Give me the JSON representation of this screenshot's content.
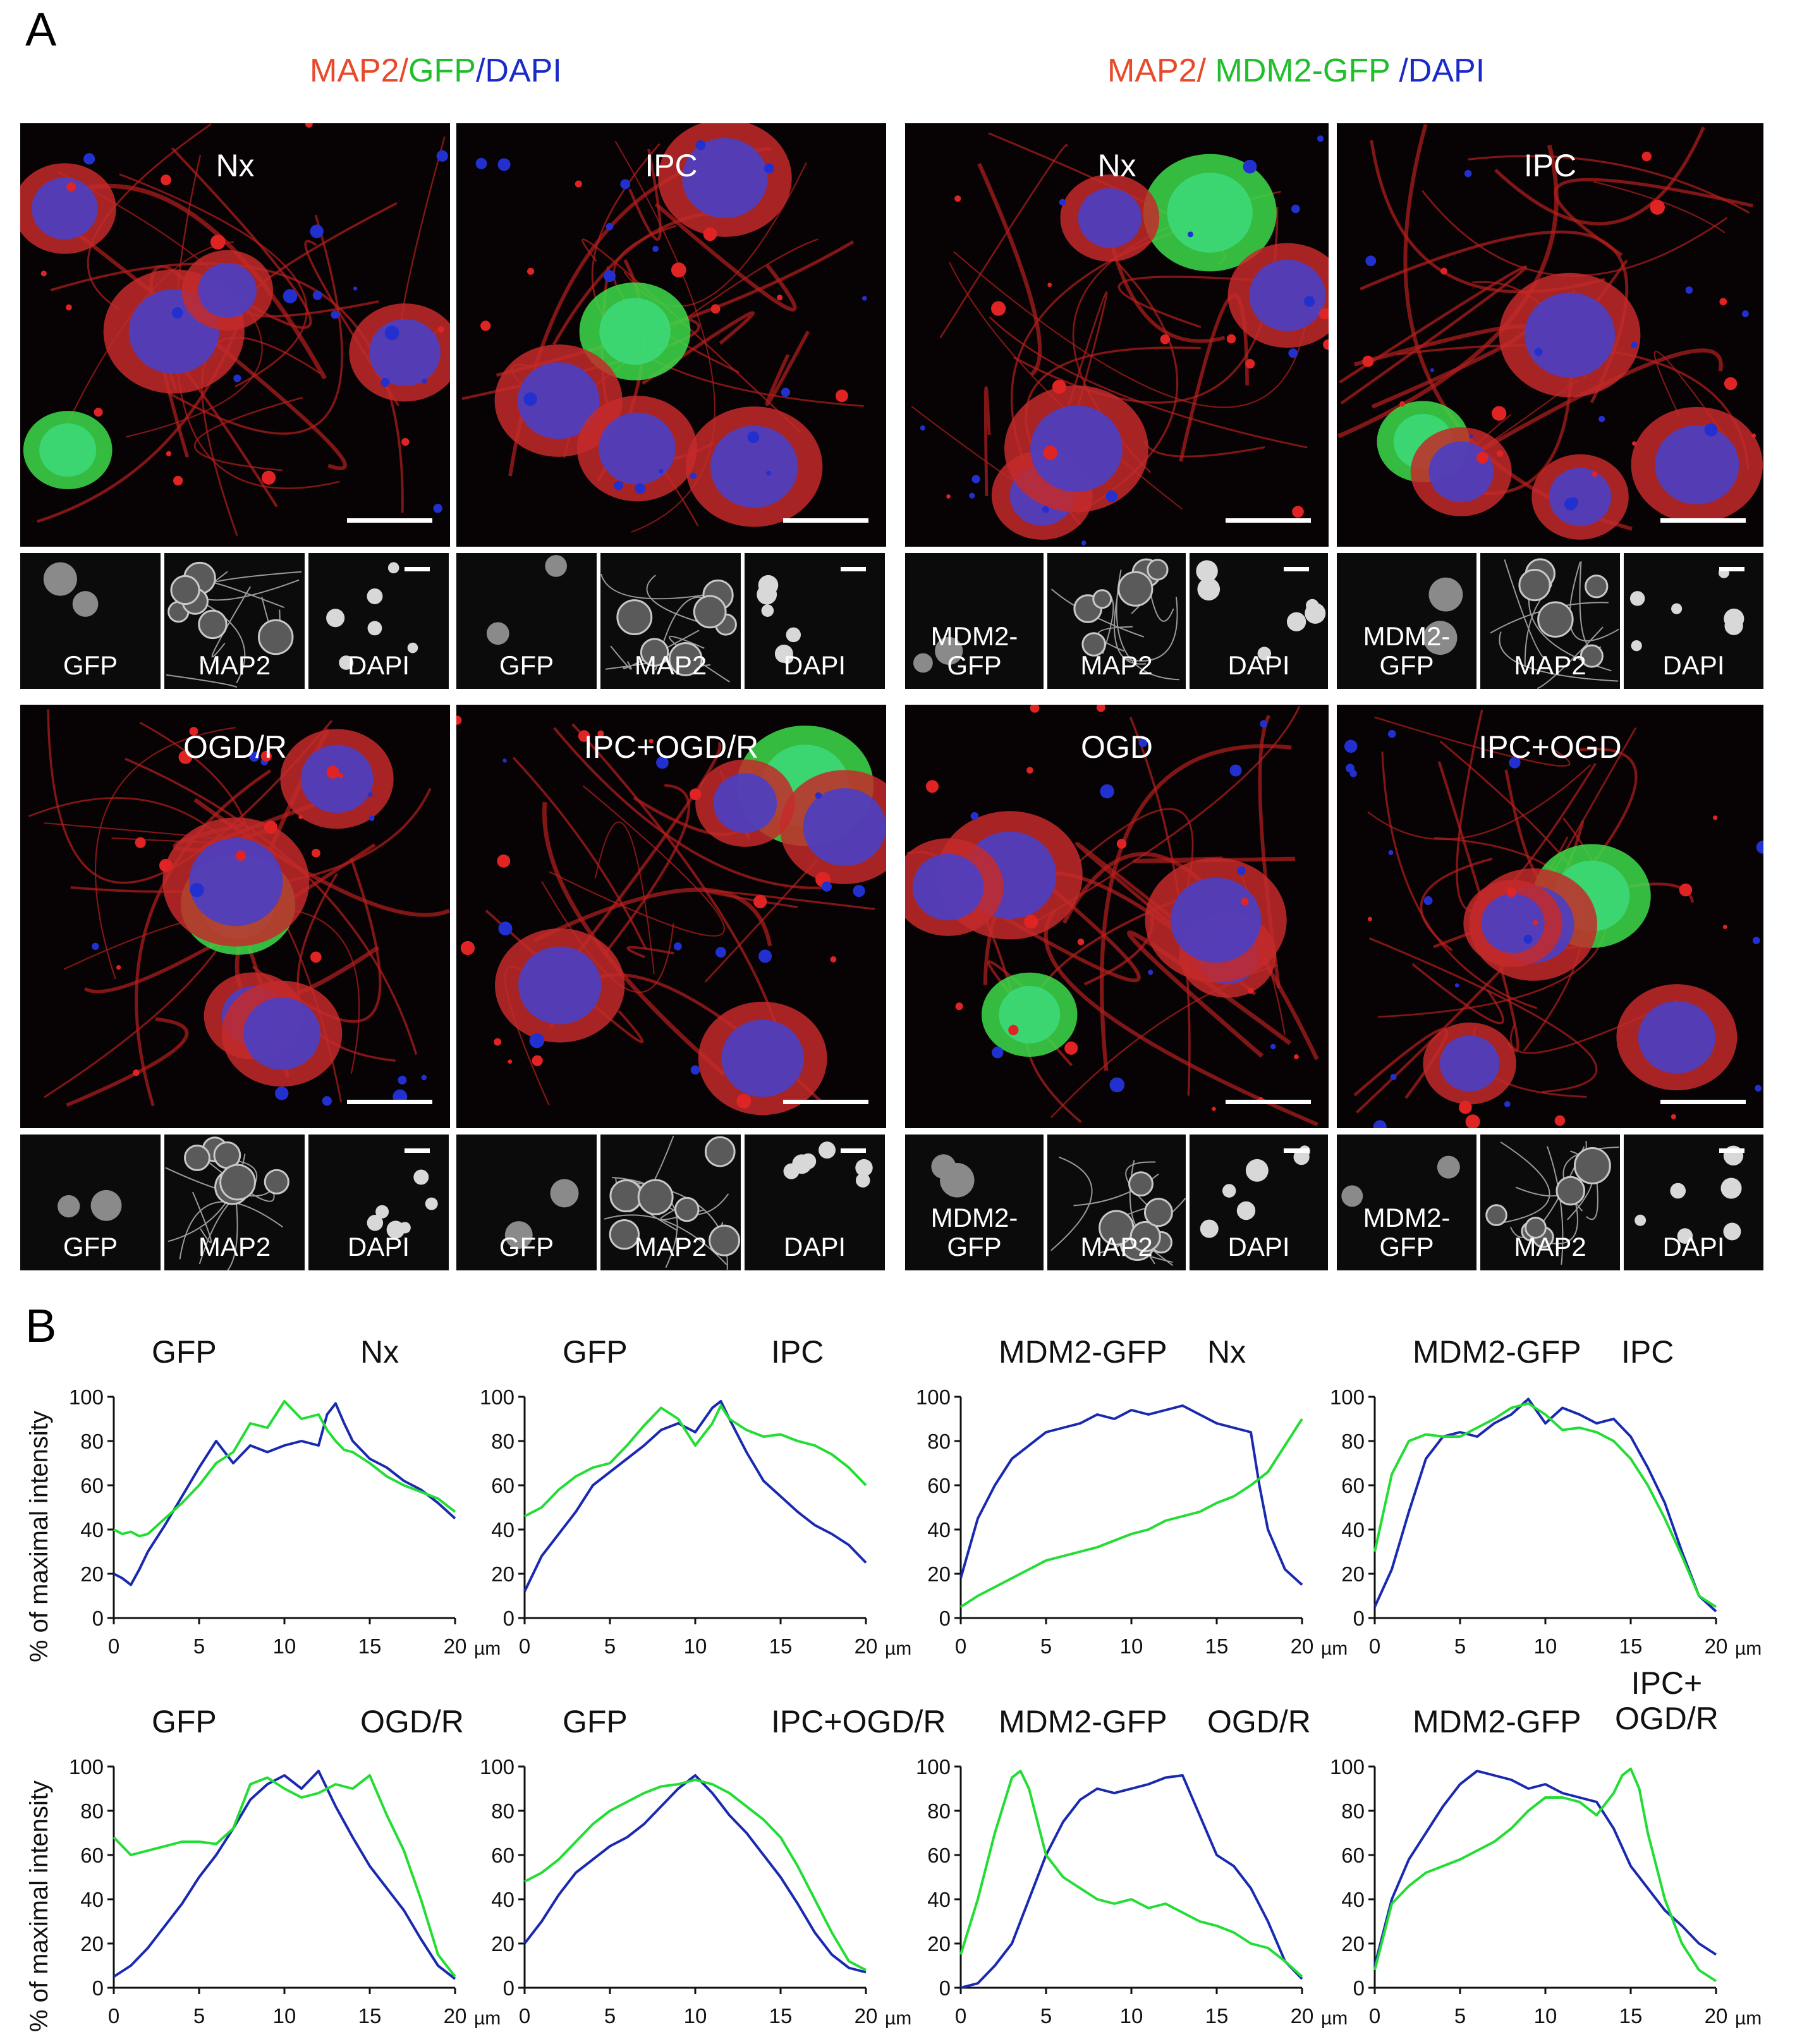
{
  "panel_a_label": "A",
  "panel_b_label": "B",
  "group_titles": [
    {
      "parts": [
        {
          "text": "MAP2",
          "color": "#e8492a"
        },
        {
          "text": "/",
          "color": "#e8492a"
        },
        {
          "text": "GFP",
          "color": "#1fbf2c"
        },
        {
          "text": "/DAPI",
          "color": "#1a2ac9"
        }
      ]
    },
    {
      "parts": [
        {
          "text": "MAP2/ ",
          "color": "#e8492a"
        },
        {
          "text": "MDM2-GFP",
          "color": "#1fbf2c"
        },
        {
          "text": " /DAPI",
          "color": "#1a2ac9"
        }
      ]
    }
  ],
  "image_labels": [
    "Nx",
    "IPC",
    "Nx",
    "IPC",
    "OGD/R",
    "IPC+OGD/R",
    "OGD",
    "IPC+OGD"
  ],
  "thumb_labels": [
    [
      "GFP",
      "MAP2",
      "DAPI"
    ],
    [
      "GFP",
      "MAP2",
      "DAPI"
    ],
    [
      "MDM2-\nGFP",
      "MAP2",
      "DAPI"
    ],
    [
      "MDM2-\nGFP",
      "MAP2",
      "DAPI"
    ],
    [
      "GFP",
      "MAP2",
      "DAPI"
    ],
    [
      "GFP",
      "MAP2",
      "DAPI"
    ],
    [
      "MDM2-\nGFP",
      "MAP2",
      "DAPI"
    ],
    [
      "MDM2-\nGFP",
      "MAP2",
      "DAPI"
    ]
  ],
  "y_axis_label": "% of maximal intensity",
  "colors": {
    "blue_series": "#1a2ab0",
    "green_series": "#22dd33",
    "map2": "#e8492a",
    "gfp": "#1fbf2c",
    "dapi": "#1a2ac9"
  },
  "chart_data": [
    {
      "type": "line",
      "title_left": "GFP",
      "title_right": "Nx",
      "x_unit": "µm",
      "xlim": [
        0,
        20
      ],
      "ylim": [
        0,
        100
      ],
      "xticks": [
        0,
        5,
        10,
        15,
        20
      ],
      "yticks": [
        0,
        20,
        40,
        60,
        80,
        100
      ],
      "series": [
        {
          "color": "blue",
          "x": [
            0,
            0.5,
            1,
            1.5,
            2,
            3,
            4,
            5,
            6,
            7,
            8,
            9,
            10,
            11,
            12,
            12.5,
            13,
            13.5,
            14,
            15,
            16,
            17,
            18,
            19,
            20
          ],
          "y": [
            20,
            18,
            15,
            22,
            30,
            42,
            55,
            68,
            80,
            70,
            78,
            75,
            78,
            80,
            78,
            92,
            97,
            88,
            80,
            72,
            68,
            62,
            58,
            52,
            45
          ]
        },
        {
          "color": "green",
          "x": [
            0,
            0.5,
            1,
            1.5,
            2,
            3,
            4,
            5,
            6,
            7,
            8,
            9,
            10,
            11,
            12,
            12.5,
            13,
            13.5,
            14,
            15,
            16,
            17,
            18,
            19,
            20
          ],
          "y": [
            40,
            38,
            39,
            37,
            38,
            45,
            52,
            60,
            70,
            75,
            88,
            86,
            98,
            90,
            92,
            85,
            80,
            76,
            75,
            70,
            64,
            60,
            57,
            54,
            48
          ]
        }
      ]
    },
    {
      "type": "line",
      "title_left": "GFP",
      "title_right": "IPC",
      "x_unit": "µm",
      "xlim": [
        0,
        20
      ],
      "ylim": [
        0,
        100
      ],
      "xticks": [
        0,
        5,
        10,
        15,
        20
      ],
      "yticks": [
        0,
        20,
        40,
        60,
        80,
        100
      ],
      "series": [
        {
          "color": "blue",
          "x": [
            0,
            1,
            2,
            3,
            4,
            5,
            6,
            7,
            8,
            9,
            10,
            11,
            11.5,
            12,
            13,
            14,
            15,
            16,
            17,
            18,
            19,
            20
          ],
          "y": [
            12,
            28,
            38,
            48,
            60,
            66,
            72,
            78,
            85,
            88,
            84,
            95,
            98,
            90,
            75,
            62,
            55,
            48,
            42,
            38,
            33,
            25
          ]
        },
        {
          "color": "green",
          "x": [
            0,
            1,
            2,
            3,
            4,
            5,
            6,
            7,
            8,
            9,
            10,
            11,
            11.5,
            12,
            13,
            14,
            15,
            16,
            17,
            18,
            19,
            20
          ],
          "y": [
            46,
            50,
            58,
            64,
            68,
            70,
            78,
            87,
            95,
            90,
            78,
            88,
            96,
            90,
            85,
            82,
            83,
            80,
            78,
            74,
            68,
            60
          ]
        }
      ]
    },
    {
      "type": "line",
      "title_left": "MDM2-GFP",
      "title_right": "Nx",
      "x_unit": "µm",
      "xlim": [
        0,
        20
      ],
      "ylim": [
        0,
        100
      ],
      "xticks": [
        0,
        5,
        10,
        15,
        20
      ],
      "yticks": [
        0,
        20,
        40,
        60,
        80,
        100
      ],
      "series": [
        {
          "color": "blue",
          "x": [
            0,
            1,
            2,
            3,
            4,
            5,
            6,
            7,
            8,
            9,
            10,
            11,
            12,
            13,
            14,
            15,
            16,
            17,
            17.5,
            18,
            19,
            20
          ],
          "y": [
            18,
            45,
            60,
            72,
            78,
            84,
            86,
            88,
            92,
            90,
            94,
            92,
            94,
            96,
            92,
            88,
            86,
            84,
            60,
            40,
            22,
            15
          ]
        },
        {
          "color": "green",
          "x": [
            0,
            1,
            2,
            3,
            4,
            5,
            6,
            7,
            8,
            9,
            10,
            11,
            12,
            13,
            14,
            15,
            16,
            17,
            18,
            19,
            20
          ],
          "y": [
            5,
            10,
            14,
            18,
            22,
            26,
            28,
            30,
            32,
            35,
            38,
            40,
            44,
            46,
            48,
            52,
            55,
            60,
            66,
            78,
            90
          ]
        }
      ]
    },
    {
      "type": "line",
      "title_left": "MDM2-GFP",
      "title_right": "IPC",
      "x_unit": "µm",
      "xlim": [
        0,
        20
      ],
      "ylim": [
        0,
        100
      ],
      "xticks": [
        0,
        5,
        10,
        15,
        20
      ],
      "yticks": [
        0,
        20,
        40,
        60,
        80,
        100
      ],
      "series": [
        {
          "color": "blue",
          "x": [
            0,
            1,
            2,
            3,
            4,
            5,
            6,
            7,
            8,
            9,
            10,
            11,
            12,
            13,
            14,
            15,
            16,
            17,
            18,
            19,
            20
          ],
          "y": [
            5,
            22,
            48,
            72,
            82,
            84,
            82,
            88,
            92,
            99,
            88,
            95,
            92,
            88,
            90,
            82,
            68,
            52,
            30,
            10,
            3
          ]
        },
        {
          "color": "green",
          "x": [
            0,
            1,
            2,
            3,
            4,
            5,
            6,
            7,
            8,
            9,
            10,
            11,
            12,
            13,
            14,
            15,
            16,
            17,
            18,
            19,
            20
          ],
          "y": [
            30,
            65,
            80,
            83,
            82,
            82,
            86,
            90,
            95,
            97,
            92,
            85,
            86,
            84,
            80,
            72,
            60,
            45,
            28,
            10,
            5
          ]
        }
      ]
    },
    {
      "type": "line",
      "title_left": "GFP",
      "title_right": "OGD/R",
      "x_unit": "µm",
      "xlim": [
        0,
        20
      ],
      "ylim": [
        0,
        100
      ],
      "xticks": [
        0,
        5,
        10,
        15,
        20
      ],
      "yticks": [
        0,
        20,
        40,
        60,
        80,
        100
      ],
      "series": [
        {
          "color": "blue",
          "x": [
            0,
            1,
            2,
            3,
            4,
            5,
            6,
            7,
            8,
            9,
            10,
            11,
            12,
            13,
            14,
            15,
            16,
            17,
            18,
            19,
            20
          ],
          "y": [
            5,
            10,
            18,
            28,
            38,
            50,
            60,
            72,
            85,
            92,
            96,
            90,
            98,
            82,
            68,
            55,
            45,
            35,
            22,
            10,
            4
          ]
        },
        {
          "color": "green",
          "x": [
            0,
            1,
            2,
            3,
            4,
            5,
            6,
            7,
            8,
            9,
            10,
            11,
            12,
            13,
            14,
            15,
            16,
            17,
            18,
            19,
            20
          ],
          "y": [
            68,
            60,
            62,
            64,
            66,
            66,
            65,
            72,
            92,
            95,
            90,
            86,
            88,
            92,
            90,
            96,
            78,
            62,
            40,
            15,
            5
          ]
        }
      ]
    },
    {
      "type": "line",
      "title_left": "GFP",
      "title_right": "IPC+OGD/R",
      "x_unit": "µm",
      "xlim": [
        0,
        20
      ],
      "ylim": [
        0,
        100
      ],
      "xticks": [
        0,
        5,
        10,
        15,
        20
      ],
      "yticks": [
        0,
        20,
        40,
        60,
        80,
        100
      ],
      "series": [
        {
          "color": "blue",
          "x": [
            0,
            1,
            2,
            3,
            4,
            5,
            6,
            7,
            8,
            9,
            10,
            11,
            12,
            13,
            14,
            15,
            16,
            17,
            18,
            19,
            20
          ],
          "y": [
            20,
            30,
            42,
            52,
            58,
            64,
            68,
            74,
            82,
            90,
            96,
            88,
            78,
            70,
            60,
            50,
            38,
            25,
            15,
            9,
            7
          ]
        },
        {
          "color": "green",
          "x": [
            0,
            1,
            2,
            3,
            4,
            5,
            6,
            7,
            8,
            9,
            10,
            11,
            12,
            13,
            14,
            15,
            16,
            17,
            18,
            19,
            20
          ],
          "y": [
            48,
            52,
            58,
            66,
            74,
            80,
            84,
            88,
            91,
            92,
            94,
            92,
            88,
            82,
            76,
            68,
            55,
            40,
            25,
            12,
            8
          ]
        }
      ]
    },
    {
      "type": "line",
      "title_left": "MDM2-GFP",
      "title_right": "OGD/R",
      "x_unit": "µm",
      "xlim": [
        0,
        20
      ],
      "ylim": [
        0,
        100
      ],
      "xticks": [
        0,
        5,
        10,
        15,
        20
      ],
      "yticks": [
        0,
        20,
        40,
        60,
        80,
        100
      ],
      "series": [
        {
          "color": "blue",
          "x": [
            0,
            1,
            2,
            3,
            4,
            5,
            6,
            7,
            8,
            9,
            10,
            11,
            12,
            13,
            14,
            15,
            16,
            17,
            18,
            19,
            20
          ],
          "y": [
            0,
            2,
            10,
            20,
            40,
            60,
            75,
            85,
            90,
            88,
            90,
            92,
            95,
            96,
            78,
            60,
            55,
            45,
            30,
            12,
            4
          ]
        },
        {
          "color": "green",
          "x": [
            0,
            1,
            2,
            3,
            3.5,
            4,
            5,
            6,
            7,
            8,
            9,
            10,
            11,
            12,
            13,
            14,
            15,
            16,
            17,
            18,
            19,
            20
          ],
          "y": [
            15,
            40,
            70,
            95,
            98,
            90,
            60,
            50,
            45,
            40,
            38,
            40,
            36,
            38,
            34,
            30,
            28,
            25,
            20,
            18,
            12,
            5
          ]
        }
      ]
    },
    {
      "type": "line",
      "title_left": "MDM2-GFP",
      "title_right": "IPC+\nOGD/R",
      "x_unit": "µm",
      "xlim": [
        0,
        20
      ],
      "ylim": [
        0,
        100
      ],
      "xticks": [
        0,
        5,
        10,
        15,
        20
      ],
      "yticks": [
        0,
        20,
        40,
        60,
        80,
        100
      ],
      "series": [
        {
          "color": "blue",
          "x": [
            0,
            1,
            2,
            3,
            4,
            5,
            6,
            7,
            8,
            9,
            10,
            11,
            12,
            13,
            14,
            15,
            16,
            17,
            18,
            19,
            20
          ],
          "y": [
            10,
            40,
            58,
            70,
            82,
            92,
            98,
            96,
            94,
            90,
            92,
            88,
            86,
            84,
            72,
            55,
            45,
            35,
            28,
            20,
            15
          ]
        },
        {
          "color": "green",
          "x": [
            0,
            1,
            2,
            3,
            4,
            5,
            6,
            7,
            8,
            9,
            10,
            11,
            12,
            13,
            14,
            14.5,
            15,
            15.5,
            16,
            17,
            18,
            19,
            20
          ],
          "y": [
            8,
            38,
            46,
            52,
            55,
            58,
            62,
            66,
            72,
            80,
            86,
            86,
            84,
            78,
            88,
            96,
            99,
            90,
            70,
            40,
            20,
            8,
            3
          ]
        }
      ]
    }
  ]
}
